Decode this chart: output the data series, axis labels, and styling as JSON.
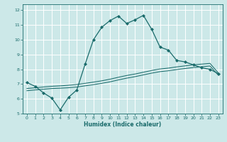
{
  "xlabel": "Humidex (Indice chaleur)",
  "xlim": [
    -0.5,
    23.5
  ],
  "ylim": [
    5,
    12.4
  ],
  "xticks": [
    0,
    1,
    2,
    3,
    4,
    5,
    6,
    7,
    8,
    9,
    10,
    11,
    12,
    13,
    14,
    15,
    16,
    17,
    18,
    19,
    20,
    21,
    22,
    23
  ],
  "yticks": [
    5,
    6,
    7,
    8,
    9,
    10,
    11,
    12
  ],
  "bg_color": "#cce8e8",
  "line_color": "#1a6b6b",
  "grid_color": "#b0d8d8",
  "line1_x": [
    0,
    1,
    2,
    3,
    4,
    5,
    6,
    7,
    8,
    9,
    10,
    11,
    12,
    13,
    14,
    15,
    16,
    17,
    18,
    19,
    20,
    21,
    22,
    23
  ],
  "line1_y": [
    7.1,
    6.85,
    6.4,
    6.05,
    5.25,
    6.1,
    6.6,
    8.35,
    10.0,
    10.85,
    11.3,
    11.6,
    11.1,
    11.35,
    11.65,
    10.7,
    9.5,
    9.3,
    8.6,
    8.5,
    8.3,
    8.1,
    8.0,
    7.7
  ],
  "line2_x": [
    0,
    1,
    2,
    3,
    4,
    5,
    6,
    7,
    8,
    9,
    10,
    11,
    12,
    13,
    14,
    15,
    16,
    17,
    18,
    19,
    20,
    21,
    22,
    23
  ],
  "line2_y": [
    6.55,
    6.6,
    6.65,
    6.7,
    6.72,
    6.75,
    6.8,
    6.88,
    6.96,
    7.05,
    7.15,
    7.28,
    7.4,
    7.5,
    7.62,
    7.74,
    7.84,
    7.9,
    7.98,
    8.05,
    8.12,
    8.17,
    8.22,
    7.6
  ],
  "line3_x": [
    0,
    1,
    2,
    3,
    4,
    5,
    6,
    7,
    8,
    9,
    10,
    11,
    12,
    13,
    14,
    15,
    16,
    17,
    18,
    19,
    20,
    21,
    22,
    23
  ],
  "line3_y": [
    6.7,
    6.75,
    6.8,
    6.85,
    6.88,
    6.92,
    6.97,
    7.05,
    7.13,
    7.22,
    7.33,
    7.46,
    7.58,
    7.68,
    7.8,
    7.92,
    8.02,
    8.08,
    8.16,
    8.23,
    8.3,
    8.35,
    8.4,
    7.75
  ]
}
